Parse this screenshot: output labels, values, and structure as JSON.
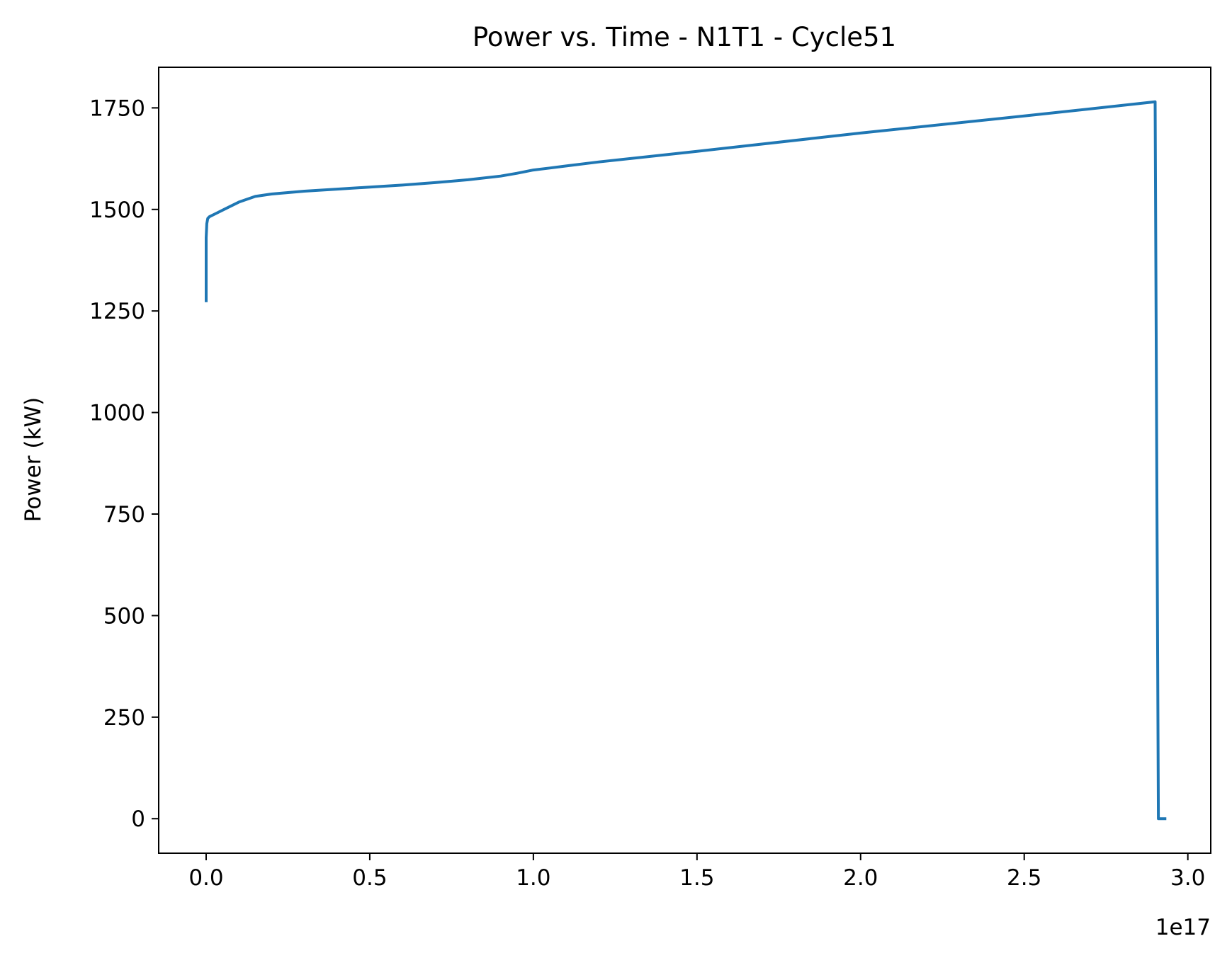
{
  "chart_data": {
    "type": "line",
    "title": "Power vs. Time - N1T1 - Cycle51",
    "xlabel": "",
    "ylabel": "Power (kW)",
    "x_offset_label": "1e17",
    "x_scale": 1e+17,
    "xlim": [
      -0.145,
      3.07
    ],
    "ylim": [
      -85,
      1850
    ],
    "xticks": [
      0.0,
      0.5,
      1.0,
      1.5,
      2.0,
      2.5,
      3.0
    ],
    "xtick_labels": [
      "0.0",
      "0.5",
      "1.0",
      "1.5",
      "2.0",
      "2.5",
      "3.0"
    ],
    "yticks": [
      0,
      250,
      500,
      750,
      1000,
      1250,
      1500,
      1750
    ],
    "ytick_labels": [
      "0",
      "250",
      "500",
      "750",
      "1000",
      "1250",
      "1500",
      "1750"
    ],
    "grid": false,
    "legend": "none",
    "series": [
      {
        "color": "#1f77b4",
        "x": [
          0.0,
          0.0,
          0.002,
          0.005,
          0.01,
          0.03,
          0.06,
          0.1,
          0.15,
          0.2,
          0.3,
          0.4,
          0.5,
          0.6,
          0.7,
          0.8,
          0.9,
          0.95,
          1.0,
          1.05,
          1.1,
          1.2,
          1.5,
          2.0,
          2.5,
          2.9,
          2.905,
          2.91,
          2.92,
          2.93
        ],
        "y": [
          1275,
          1430,
          1465,
          1478,
          1482,
          1490,
          1502,
          1518,
          1532,
          1538,
          1545,
          1550,
          1555,
          1560,
          1566,
          1573,
          1582,
          1589,
          1597,
          1602,
          1607,
          1617,
          1643,
          1688,
          1730,
          1765,
          875,
          0,
          0,
          0
        ]
      }
    ]
  }
}
